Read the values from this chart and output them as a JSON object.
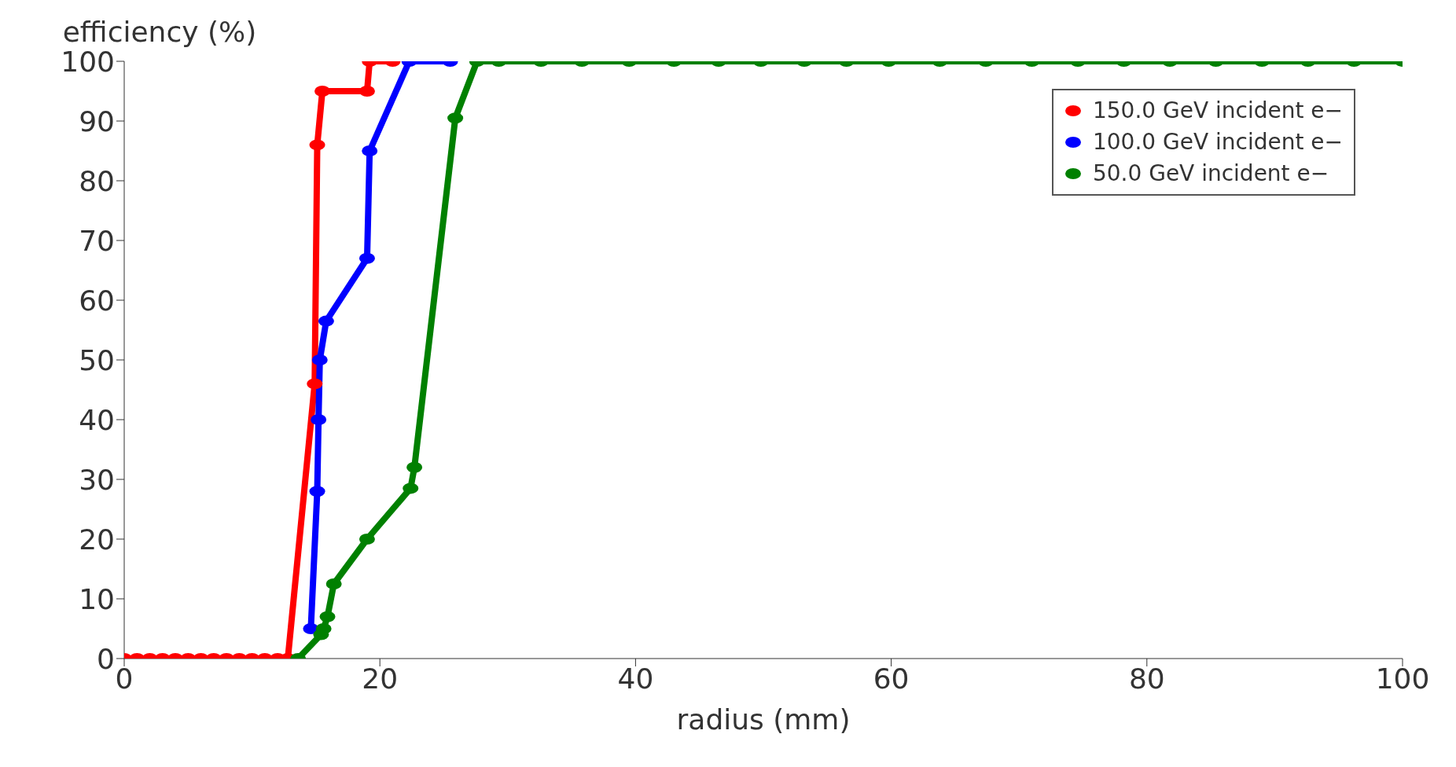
{
  "chart_data": {
    "type": "line",
    "xlabel": "radius (mm)",
    "ylabel": "efficiency (%)",
    "xlim": [
      0,
      100
    ],
    "xticks": [
      0,
      20,
      40,
      60,
      80,
      100
    ],
    "ylim": [
      0,
      100
    ],
    "yticks": [
      0,
      10,
      20,
      30,
      40,
      50,
      60,
      70,
      80,
      90,
      100
    ],
    "grid": false,
    "legend": "top right",
    "marker": "circle",
    "line_style": "solid",
    "series": [
      {
        "name": "150.0 GeV incident e−",
        "color": "#ff0000",
        "x": [
          0,
          1,
          2,
          3,
          4,
          5,
          6,
          7,
          8,
          9,
          10,
          11,
          12,
          12.8,
          14.9,
          15.1,
          15.5,
          19,
          19.2,
          21
        ],
        "values": [
          0,
          0,
          0,
          0,
          0,
          0,
          0,
          0,
          0,
          0,
          0,
          0,
          0,
          0,
          46,
          86,
          95,
          95,
          100,
          100
        ]
      },
      {
        "name": "100.0 GeV incident e−",
        "color": "#0000ff",
        "x": [
          14.6,
          15.1,
          15.2,
          15.3,
          15.8,
          19,
          19.2,
          22.3,
          25.5
        ],
        "values": [
          5,
          28,
          40,
          50,
          56.5,
          67,
          85,
          100,
          100
        ]
      },
      {
        "name": "50.0 GeV incident e−",
        "color": "#008000",
        "x": [
          13.6,
          15.4,
          15.6,
          15.9,
          16.4,
          19,
          22.4,
          22.7,
          25.9,
          27.6,
          29.3,
          32.6,
          35.8,
          39.5,
          43,
          46.5,
          49.8,
          53.2,
          56.5,
          59.8,
          63.8,
          67.4,
          71,
          74.6,
          78.2,
          81.8,
          85.4,
          89,
          92.6,
          96.2,
          100
        ],
        "values": [
          0,
          4,
          5,
          7,
          12.5,
          20,
          28.5,
          32,
          90.5,
          100,
          100,
          100,
          100,
          100,
          100,
          100,
          100,
          100,
          100,
          100,
          100,
          100,
          100,
          100,
          100,
          100,
          100,
          100,
          100,
          100,
          100
        ]
      }
    ]
  }
}
